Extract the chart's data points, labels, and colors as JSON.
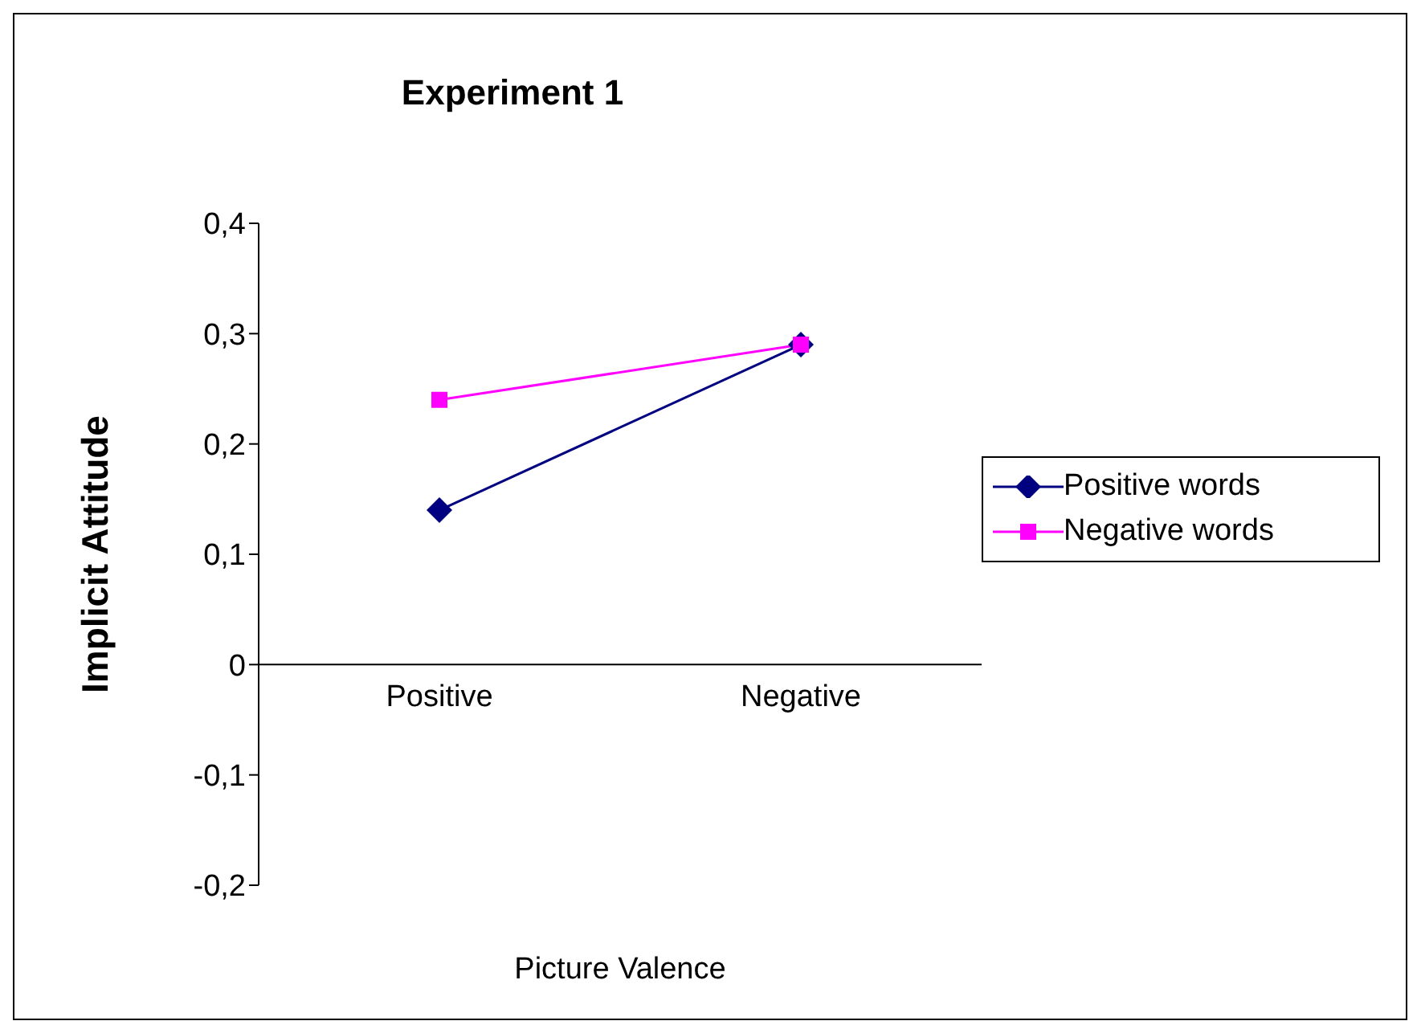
{
  "chart_data": {
    "type": "line",
    "title": "Experiment 1",
    "xlabel": "Picture Valence",
    "ylabel": "Implicit Attitude",
    "categories": [
      "Positive",
      "Negative"
    ],
    "series": [
      {
        "name": "Positive words",
        "color": "#000080",
        "values": [
          0.14,
          0.29
        ],
        "marker": "diamond"
      },
      {
        "name": "Negative words",
        "color": "#ff00ff",
        "values": [
          0.24,
          0.29
        ],
        "marker": "square"
      }
    ],
    "ylim": [
      -0.2,
      0.4
    ],
    "yticks": [
      {
        "value": -0.2,
        "label": "-0,2"
      },
      {
        "value": -0.1,
        "label": "-0,1"
      },
      {
        "value": 0,
        "label": "0"
      },
      {
        "value": 0.1,
        "label": "0,1"
      },
      {
        "value": 0.2,
        "label": "0,2"
      },
      {
        "value": 0.3,
        "label": "0,3"
      },
      {
        "value": 0.4,
        "label": "0,4"
      }
    ],
    "grid": false,
    "legend": "right"
  }
}
